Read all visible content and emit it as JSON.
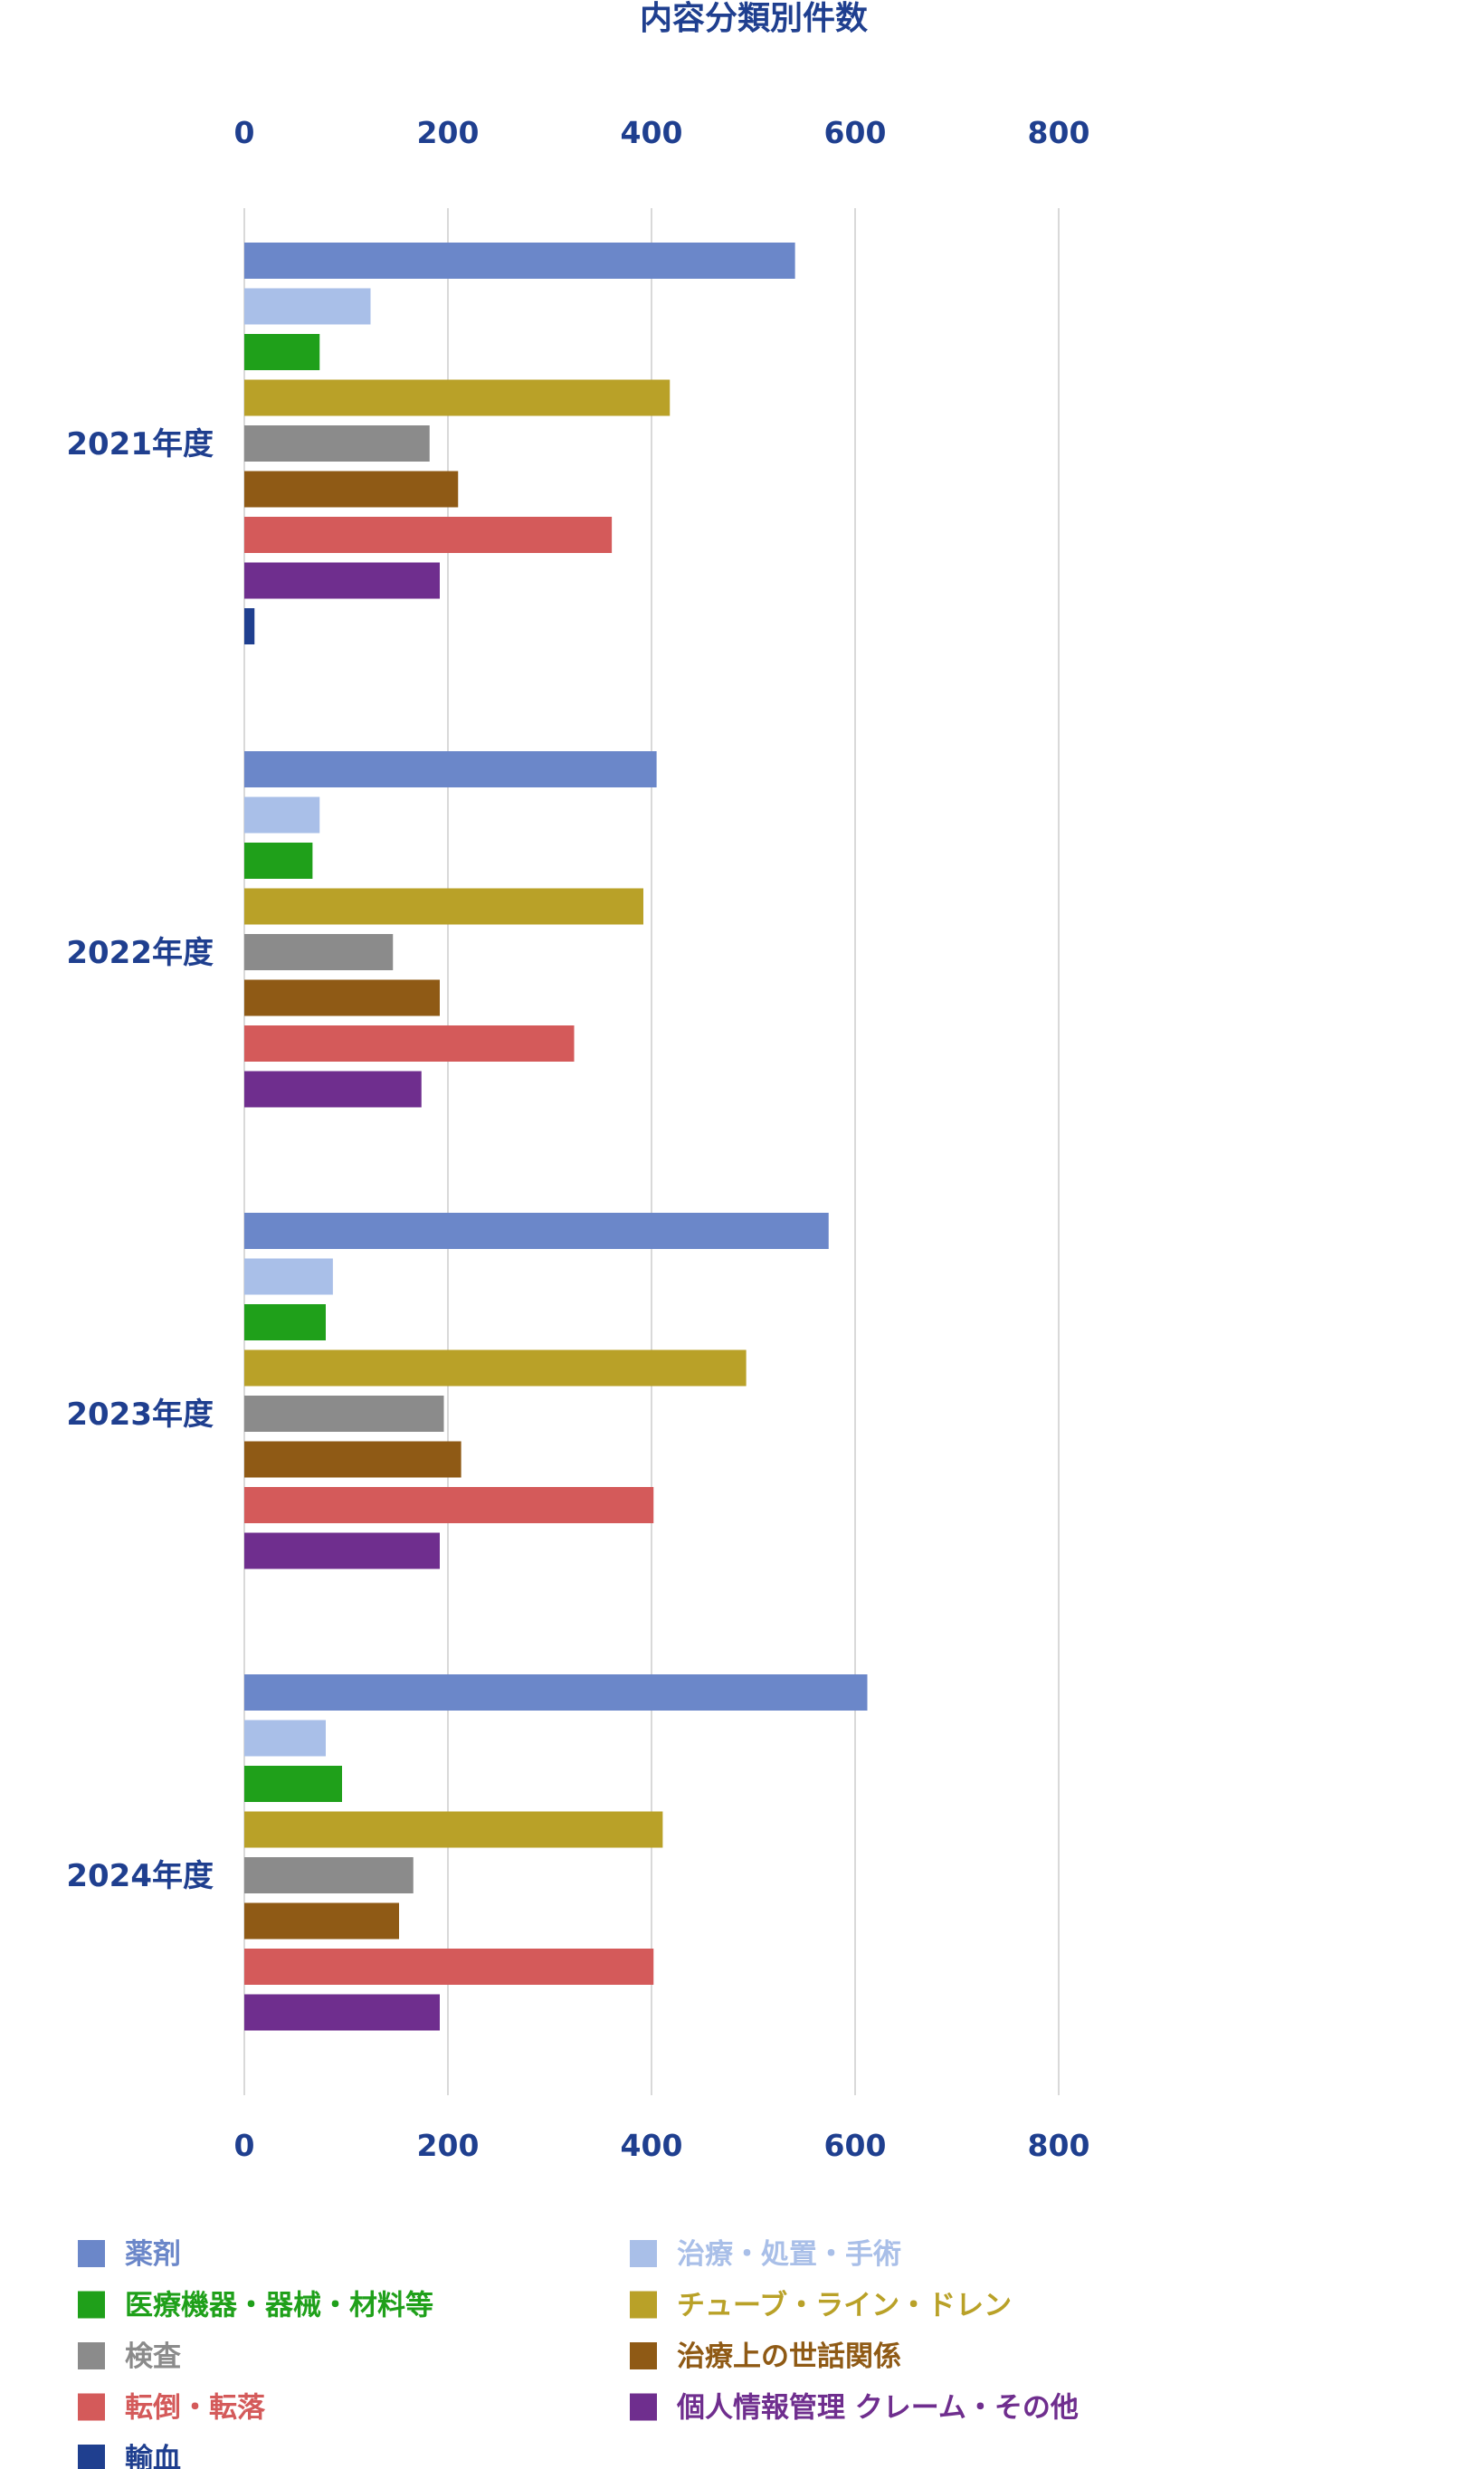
{
  "chart_data": {
    "type": "bar",
    "orientation": "horizontal",
    "title": "内容分類別件数",
    "xlabel": "",
    "ylabel": "",
    "xlim": [
      0,
      800
    ],
    "ticks": [
      "0",
      "200",
      "400",
      "600",
      "800"
    ],
    "grid": true,
    "legend_position": "bottom",
    "categories": [
      "2021年度",
      "2022年度",
      "2023年度",
      "2024年度"
    ],
    "series": [
      {
        "name": "薬剤",
        "color": "#6b87c9",
        "values": [
          541,
          405,
          574,
          612
        ]
      },
      {
        "name": "治療・処置・手術",
        "color": "#a9bfe8",
        "values": [
          124,
          74,
          87,
          80
        ]
      },
      {
        "name": "医療機器・器械・材料等",
        "color": "#1fa01a",
        "values": [
          74,
          67,
          80,
          96
        ]
      },
      {
        "name": "チューブ・ライン・ドレン",
        "color": "#b9a128",
        "values": [
          418,
          392,
          493,
          411
        ]
      },
      {
        "name": "検査",
        "color": "#8b8b8b",
        "values": [
          182,
          146,
          196,
          166
        ]
      },
      {
        "name": "治療上の世話関係",
        "color": "#8f5a15",
        "values": [
          210,
          192,
          213,
          152
        ]
      },
      {
        "name": "転倒・転落",
        "color": "#d45a5a",
        "values": [
          361,
          324,
          402,
          402
        ]
      },
      {
        "name": "個人情報管理 クレーム・その他",
        "color": "#6f2e8e",
        "values": [
          192,
          174,
          192,
          192
        ]
      },
      {
        "name": "輸血",
        "color": "#1f3f8f",
        "values": [
          10,
          0,
          0,
          0
        ]
      }
    ]
  }
}
